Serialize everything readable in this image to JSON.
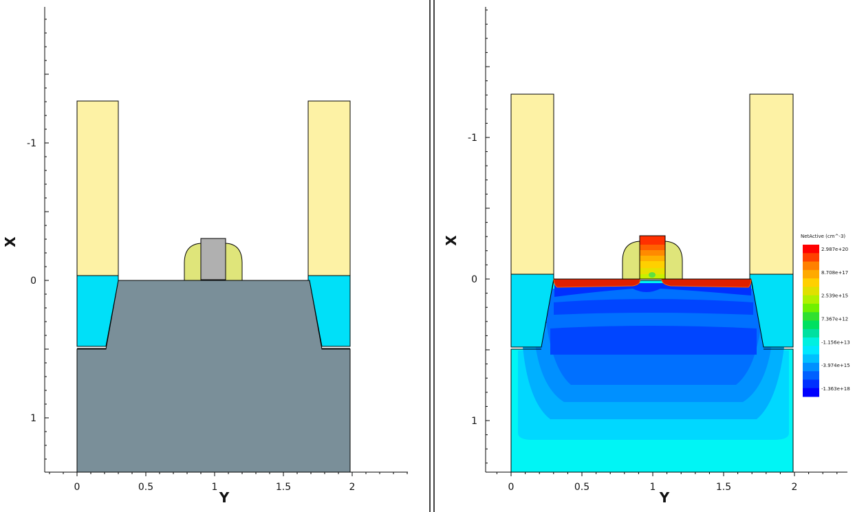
{
  "colors": {
    "oxide_fill": "#fdf2a5",
    "sti_fill": "#00e0f8",
    "silicon_gray": "#7a8f99",
    "spacer_fill": "#dfe57a",
    "gate_gray": "#b0b0b0",
    "axis": "#000000"
  },
  "left_plot": {
    "x_ticks": [
      {
        "value": 0,
        "label": "0"
      },
      {
        "value": 0.5,
        "label": "0.5"
      },
      {
        "value": 1,
        "label": "1"
      },
      {
        "value": 1.5,
        "label": "1.5"
      },
      {
        "value": 2,
        "label": "2"
      }
    ],
    "y_ticks": [
      {
        "value": -1,
        "label": "-1"
      },
      {
        "value": 0,
        "label": "0"
      },
      {
        "value": 1,
        "label": "1"
      }
    ],
    "x_label": "Y",
    "y_label": "X"
  },
  "right_plot": {
    "x_ticks": [
      {
        "value": 0,
        "label": "0"
      },
      {
        "value": 0.5,
        "label": "0.5"
      },
      {
        "value": 1,
        "label": "1"
      },
      {
        "value": 1.5,
        "label": "1.5"
      },
      {
        "value": 2,
        "label": "2"
      }
    ],
    "y_ticks": [
      {
        "value": -1,
        "label": "-1"
      },
      {
        "value": 0,
        "label": "0"
      },
      {
        "value": 1,
        "label": "1"
      }
    ],
    "x_label": "Y",
    "y_label": "X",
    "legend": {
      "title": "NetActive (cm^-3)",
      "labels": [
        "2.987e+20",
        "8.708e+17",
        "2.539e+15",
        "7.367e+12",
        "-1.156e+13",
        "-3.974e+15",
        "-1.363e+18"
      ],
      "colors": [
        "#ff0000",
        "#ff4000",
        "#ff8000",
        "#ffaa00",
        "#ffd000",
        "#e0e000",
        "#b0f000",
        "#70f000",
        "#30e030",
        "#00e060",
        "#00e0a0",
        "#00f0e0",
        "#00e8ff",
        "#00c0ff",
        "#0090ff",
        "#0060ff",
        "#0030ff",
        "#0000ff"
      ]
    }
  }
}
